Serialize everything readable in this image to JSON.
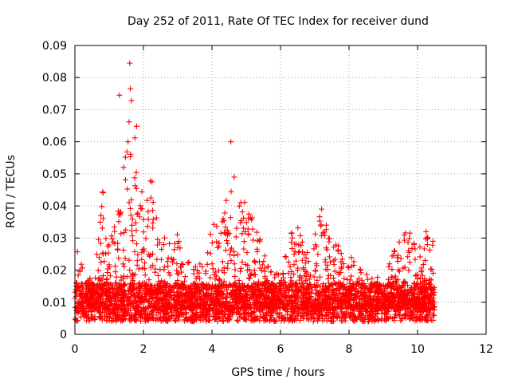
{
  "chart_data": {
    "type": "scatter",
    "title": "Day 252 of 2011, Rate Of TEC Index for receiver dund",
    "xlabel": "GPS time / hours",
    "ylabel": "ROTI / TECUs",
    "xlim": [
      0,
      12
    ],
    "ylim": [
      0,
      0.09
    ],
    "x_ticks": [
      0,
      2,
      4,
      6,
      8,
      10,
      12
    ],
    "x_tick_labels": [
      "0",
      "2",
      "4",
      "6",
      "8",
      "10",
      "12"
    ],
    "y_ticks": [
      0,
      0.01,
      0.02,
      0.03,
      0.04,
      0.05,
      0.06,
      0.07,
      0.08,
      0.09
    ],
    "y_tick_labels": [
      "0",
      "0.01",
      "0.02",
      "0.03",
      "0.04",
      "0.05",
      "0.06",
      "0.07",
      "0.08",
      "0.09"
    ],
    "grid": true,
    "marker": "+",
    "color": "#ff0000",
    "seed": 252,
    "x_data_range": [
      0,
      10.5
    ],
    "baseline_range": [
      0.004,
      0.016
    ],
    "series": [
      {
        "name": "ROTI",
        "outliers": [
          {
            "x": 1.3,
            "y": 0.0745
          },
          {
            "x": 1.6,
            "y": 0.0845
          },
          {
            "x": 1.62,
            "y": 0.0765
          },
          {
            "x": 1.65,
            "y": 0.0728
          },
          {
            "x": 1.58,
            "y": 0.0662
          },
          {
            "x": 1.8,
            "y": 0.0648
          },
          {
            "x": 1.75,
            "y": 0.0612
          },
          {
            "x": 1.55,
            "y": 0.06
          },
          {
            "x": 2.2,
            "y": 0.0478
          },
          {
            "x": 2.25,
            "y": 0.0475
          },
          {
            "x": 4.55,
            "y": 0.06
          },
          {
            "x": 4.65,
            "y": 0.049
          },
          {
            "x": 1.42,
            "y": 0.052
          },
          {
            "x": 7.2,
            "y": 0.039
          },
          {
            "x": 10.25,
            "y": 0.032
          },
          {
            "x": 10.45,
            "y": 0.029
          }
        ],
        "envelope": [
          {
            "x": 0.0,
            "y": 0.022
          },
          {
            "x": 0.1,
            "y": 0.03
          },
          {
            "x": 0.3,
            "y": 0.016
          },
          {
            "x": 0.6,
            "y": 0.02
          },
          {
            "x": 0.8,
            "y": 0.046
          },
          {
            "x": 1.0,
            "y": 0.028
          },
          {
            "x": 1.2,
            "y": 0.036
          },
          {
            "x": 1.4,
            "y": 0.05
          },
          {
            "x": 1.6,
            "y": 0.066
          },
          {
            "x": 1.8,
            "y": 0.062
          },
          {
            "x": 2.0,
            "y": 0.045
          },
          {
            "x": 2.2,
            "y": 0.048
          },
          {
            "x": 2.5,
            "y": 0.03
          },
          {
            "x": 2.9,
            "y": 0.035
          },
          {
            "x": 3.2,
            "y": 0.024
          },
          {
            "x": 3.6,
            "y": 0.022
          },
          {
            "x": 3.9,
            "y": 0.03
          },
          {
            "x": 4.2,
            "y": 0.04
          },
          {
            "x": 4.5,
            "y": 0.045
          },
          {
            "x": 4.7,
            "y": 0.048
          },
          {
            "x": 5.0,
            "y": 0.04
          },
          {
            "x": 5.3,
            "y": 0.036
          },
          {
            "x": 5.6,
            "y": 0.022
          },
          {
            "x": 6.0,
            "y": 0.018
          },
          {
            "x": 6.3,
            "y": 0.032
          },
          {
            "x": 6.5,
            "y": 0.034
          },
          {
            "x": 6.8,
            "y": 0.026
          },
          {
            "x": 7.2,
            "y": 0.039
          },
          {
            "x": 7.5,
            "y": 0.03
          },
          {
            "x": 7.8,
            "y": 0.028
          },
          {
            "x": 8.2,
            "y": 0.022
          },
          {
            "x": 8.6,
            "y": 0.018
          },
          {
            "x": 9.0,
            "y": 0.018
          },
          {
            "x": 9.4,
            "y": 0.028
          },
          {
            "x": 9.7,
            "y": 0.034
          },
          {
            "x": 10.0,
            "y": 0.026
          },
          {
            "x": 10.3,
            "y": 0.032
          },
          {
            "x": 10.5,
            "y": 0.028
          }
        ]
      }
    ]
  }
}
